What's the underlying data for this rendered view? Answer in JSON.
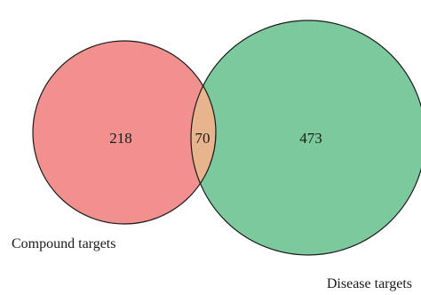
{
  "venn": {
    "sets": [
      {
        "key": "compound",
        "label": "Compound targets",
        "count": "218",
        "fill": "#f29090"
      },
      {
        "key": "disease",
        "label": "Disease targets",
        "count": "473",
        "fill": "#7dc99e"
      }
    ],
    "intersection": {
      "count": "70",
      "fill": "#e8b48e"
    },
    "outline_color": "#1a1a1a"
  }
}
